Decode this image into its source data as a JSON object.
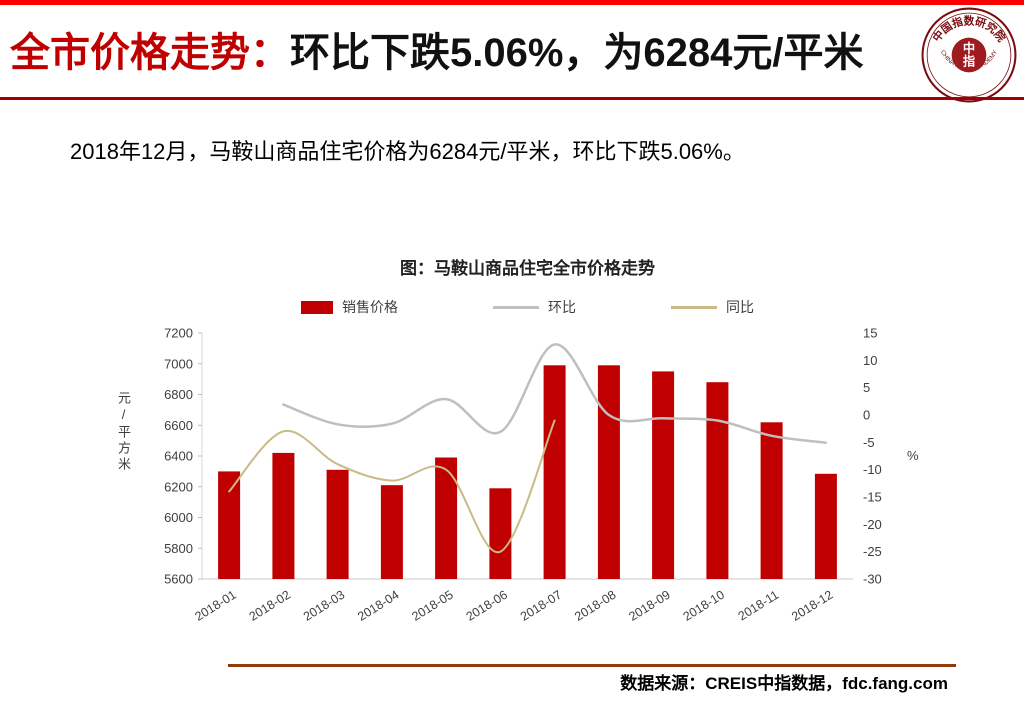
{
  "header": {
    "title_red": "全市价格走势：",
    "title_rest": "环比下跌5.06%，为6284元/平米"
  },
  "logo": {
    "cn": "中国指数研究院",
    "en": "CHINA INDEX ACADEMY",
    "seal_top": "中",
    "seal_bottom": "指"
  },
  "intro": "2018年12月，马鞍山商品住宅价格为6284元/平米，环比下跌5.06%。",
  "footer": {
    "source": "数据来源：CREIS中指数据，fdc.fang.com"
  },
  "theme": {
    "accent_red": "#c00000",
    "top_strip": "#fe0000",
    "header_rule": "#a00000",
    "bottom_rule": "#8e3b10",
    "tick_text": "#404040"
  },
  "chart_data": {
    "type": "combo-bar-line",
    "title": "图：马鞍山商品住宅全市价格走势",
    "categories": [
      "2018-01",
      "2018-02",
      "2018-03",
      "2018-04",
      "2018-05",
      "2018-06",
      "2018-07",
      "2018-08",
      "2018-09",
      "2018-10",
      "2018-11",
      "2018-12"
    ],
    "series": [
      {
        "id": "sales-price",
        "name": "销售价格",
        "kind": "bar",
        "axis": "left",
        "color": "#c00000",
        "values": [
          6300,
          6420,
          6310,
          6210,
          6390,
          6190,
          6990,
          6990,
          6950,
          6880,
          6619,
          6284
        ]
      },
      {
        "id": "mom",
        "name": "环比",
        "kind": "line",
        "axis": "right",
        "color": "#bfbfbf",
        "width": 2.5,
        "values": [
          null,
          1.9,
          -1.7,
          -1.6,
          2.9,
          -3.1,
          12.9,
          0,
          -0.6,
          -1.0,
          -3.8,
          -5.06
        ]
      },
      {
        "id": "yoy",
        "name": "同比",
        "kind": "line",
        "axis": "right",
        "color": "#c9ba88",
        "width": 2,
        "values": [
          -14,
          -3,
          -9,
          -12,
          -10,
          -25,
          -1,
          null,
          null,
          null,
          null,
          null
        ]
      }
    ],
    "left_axis": {
      "label": "元/平方米",
      "min": 5600,
      "max": 7200,
      "step": 200
    },
    "right_axis": {
      "label": "%",
      "min": -30,
      "max": 15,
      "step": 5
    },
    "grid": false,
    "legend_position": "top"
  }
}
